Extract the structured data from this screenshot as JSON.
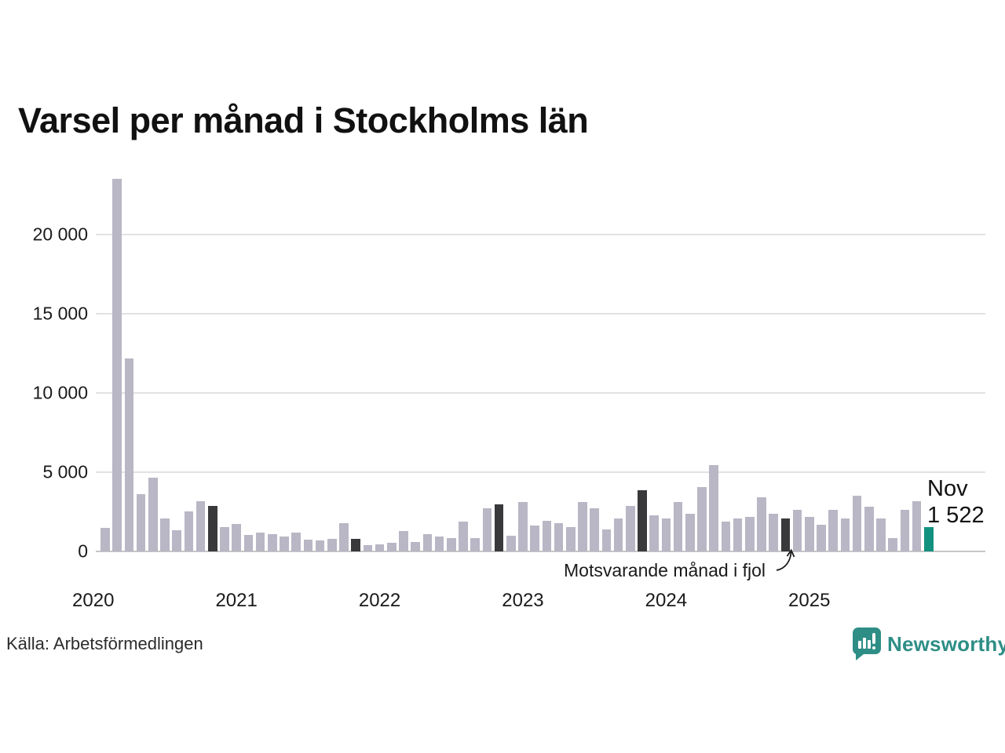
{
  "title": "Varsel per månad i Stockholms län",
  "source": "Källa: Arbetsförmedlingen",
  "brand": {
    "name": "Newsworthy",
    "color": "#2e8e86"
  },
  "annotation": {
    "text": "Motsvarande månad i fjol",
    "points_to": "2024-11"
  },
  "current_label": {
    "month_label": "Nov",
    "value_label": "1 522"
  },
  "colors": {
    "bar": "#b9b6c5",
    "bar_dark": "#39393c",
    "bar_current": "#12917e",
    "gridline": "#e2e2e2",
    "zero_line": "#c6c6c6",
    "text": "#1a1a1a"
  },
  "chart_data": {
    "type": "bar",
    "title": "Varsel per månad i Stockholms län",
    "xlabel": "",
    "ylabel": "",
    "ylim": [
      0,
      23600
    ],
    "grid": "horizontal",
    "yticks": [
      {
        "value": 0,
        "label": "0"
      },
      {
        "value": 5000,
        "label": "5 000"
      },
      {
        "value": 10000,
        "label": "10 000"
      },
      {
        "value": 15000,
        "label": "15 000"
      },
      {
        "value": 20000,
        "label": "20 000"
      }
    ],
    "year_labels": [
      "2020",
      "2021",
      "2022",
      "2023",
      "2024",
      "2025"
    ],
    "series_name": "Varsel per månad",
    "points": [
      {
        "month": "2020-02",
        "value": 1500,
        "role": "normal"
      },
      {
        "month": "2020-03",
        "value": 23500,
        "role": "normal"
      },
      {
        "month": "2020-04",
        "value": 12200,
        "role": "normal"
      },
      {
        "month": "2020-05",
        "value": 3600,
        "role": "normal"
      },
      {
        "month": "2020-06",
        "value": 4650,
        "role": "normal"
      },
      {
        "month": "2020-07",
        "value": 2100,
        "role": "normal"
      },
      {
        "month": "2020-08",
        "value": 1350,
        "role": "normal"
      },
      {
        "month": "2020-09",
        "value": 2500,
        "role": "normal"
      },
      {
        "month": "2020-10",
        "value": 3150,
        "role": "normal"
      },
      {
        "month": "2020-11",
        "value": 2850,
        "role": "prior_november"
      },
      {
        "month": "2020-12",
        "value": 1550,
        "role": "normal"
      },
      {
        "month": "2021-01",
        "value": 1750,
        "role": "normal"
      },
      {
        "month": "2021-02",
        "value": 1050,
        "role": "normal"
      },
      {
        "month": "2021-03",
        "value": 1200,
        "role": "normal"
      },
      {
        "month": "2021-04",
        "value": 1100,
        "role": "normal"
      },
      {
        "month": "2021-05",
        "value": 950,
        "role": "normal"
      },
      {
        "month": "2021-06",
        "value": 1200,
        "role": "normal"
      },
      {
        "month": "2021-07",
        "value": 750,
        "role": "normal"
      },
      {
        "month": "2021-08",
        "value": 700,
        "role": "normal"
      },
      {
        "month": "2021-09",
        "value": 800,
        "role": "normal"
      },
      {
        "month": "2021-10",
        "value": 1800,
        "role": "normal"
      },
      {
        "month": "2021-11",
        "value": 800,
        "role": "prior_november"
      },
      {
        "month": "2021-12",
        "value": 400,
        "role": "normal"
      },
      {
        "month": "2022-01",
        "value": 450,
        "role": "normal"
      },
      {
        "month": "2022-02",
        "value": 550,
        "role": "normal"
      },
      {
        "month": "2022-03",
        "value": 1300,
        "role": "normal"
      },
      {
        "month": "2022-04",
        "value": 600,
        "role": "normal"
      },
      {
        "month": "2022-05",
        "value": 1100,
        "role": "normal"
      },
      {
        "month": "2022-06",
        "value": 950,
        "role": "normal"
      },
      {
        "month": "2022-07",
        "value": 850,
        "role": "normal"
      },
      {
        "month": "2022-08",
        "value": 1900,
        "role": "normal"
      },
      {
        "month": "2022-09",
        "value": 850,
        "role": "normal"
      },
      {
        "month": "2022-10",
        "value": 2700,
        "role": "normal"
      },
      {
        "month": "2022-11",
        "value": 2950,
        "role": "prior_november"
      },
      {
        "month": "2022-12",
        "value": 1000,
        "role": "normal"
      },
      {
        "month": "2023-01",
        "value": 3100,
        "role": "normal"
      },
      {
        "month": "2023-02",
        "value": 1650,
        "role": "normal"
      },
      {
        "month": "2023-03",
        "value": 1950,
        "role": "normal"
      },
      {
        "month": "2023-04",
        "value": 1800,
        "role": "normal"
      },
      {
        "month": "2023-05",
        "value": 1550,
        "role": "normal"
      },
      {
        "month": "2023-06",
        "value": 3100,
        "role": "normal"
      },
      {
        "month": "2023-07",
        "value": 2700,
        "role": "normal"
      },
      {
        "month": "2023-08",
        "value": 1400,
        "role": "normal"
      },
      {
        "month": "2023-09",
        "value": 2100,
        "role": "normal"
      },
      {
        "month": "2023-10",
        "value": 2850,
        "role": "normal"
      },
      {
        "month": "2023-11",
        "value": 3850,
        "role": "prior_november"
      },
      {
        "month": "2023-12",
        "value": 2300,
        "role": "normal"
      },
      {
        "month": "2024-01",
        "value": 2100,
        "role": "normal"
      },
      {
        "month": "2024-02",
        "value": 3100,
        "role": "normal"
      },
      {
        "month": "2024-03",
        "value": 2400,
        "role": "normal"
      },
      {
        "month": "2024-04",
        "value": 4050,
        "role": "normal"
      },
      {
        "month": "2024-05",
        "value": 5450,
        "role": "normal"
      },
      {
        "month": "2024-06",
        "value": 1900,
        "role": "normal"
      },
      {
        "month": "2024-07",
        "value": 2100,
        "role": "normal"
      },
      {
        "month": "2024-08",
        "value": 2200,
        "role": "normal"
      },
      {
        "month": "2024-09",
        "value": 3400,
        "role": "normal"
      },
      {
        "month": "2024-10",
        "value": 2400,
        "role": "normal"
      },
      {
        "month": "2024-11",
        "value": 2100,
        "role": "prior_november"
      },
      {
        "month": "2024-12",
        "value": 2600,
        "role": "normal"
      },
      {
        "month": "2025-01",
        "value": 2200,
        "role": "normal"
      },
      {
        "month": "2025-02",
        "value": 1700,
        "role": "normal"
      },
      {
        "month": "2025-03",
        "value": 2600,
        "role": "normal"
      },
      {
        "month": "2025-04",
        "value": 2100,
        "role": "normal"
      },
      {
        "month": "2025-05",
        "value": 3500,
        "role": "normal"
      },
      {
        "month": "2025-06",
        "value": 2800,
        "role": "normal"
      },
      {
        "month": "2025-07",
        "value": 2100,
        "role": "normal"
      },
      {
        "month": "2025-08",
        "value": 850,
        "role": "normal"
      },
      {
        "month": "2025-09",
        "value": 2600,
        "role": "normal"
      },
      {
        "month": "2025-10",
        "value": 3150,
        "role": "normal"
      },
      {
        "month": "2025-11",
        "value": 1522,
        "role": "current"
      }
    ]
  }
}
